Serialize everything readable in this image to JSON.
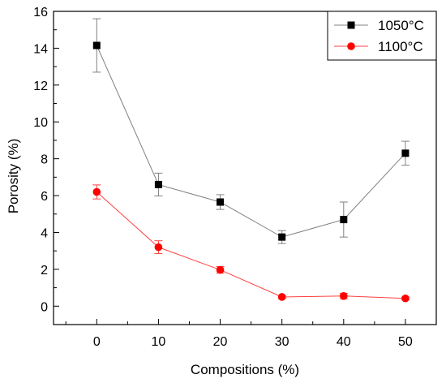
{
  "chart_data": {
    "type": "line",
    "title": "",
    "xlabel": "Compositions (%)",
    "ylabel": "Porosity (%)",
    "xlim": [
      -7,
      55
    ],
    "ylim": [
      -1,
      16
    ],
    "x_ticks": [
      0,
      10,
      20,
      30,
      40,
      50
    ],
    "y_ticks": [
      0,
      2,
      4,
      6,
      8,
      10,
      12,
      14,
      16
    ],
    "grid": false,
    "legend_position": "top-right",
    "series": [
      {
        "name": "1050°C",
        "color": "#000000",
        "line_color": "#808080",
        "marker": "square",
        "x": [
          0,
          10,
          20,
          30,
          40,
          50
        ],
        "y": [
          14.15,
          6.6,
          5.65,
          3.75,
          4.7,
          8.3
        ],
        "error": [
          1.45,
          0.62,
          0.4,
          0.35,
          0.95,
          0.65
        ]
      },
      {
        "name": "1100°C",
        "color": "#ff0000",
        "line_color": "#ff4040",
        "marker": "circle",
        "x": [
          0,
          10,
          20,
          30,
          40,
          50
        ],
        "y": [
          6.2,
          3.2,
          1.97,
          0.5,
          0.55,
          0.42
        ],
        "error": [
          0.38,
          0.35,
          0.18,
          0.07,
          0.15,
          0.07
        ]
      }
    ]
  }
}
